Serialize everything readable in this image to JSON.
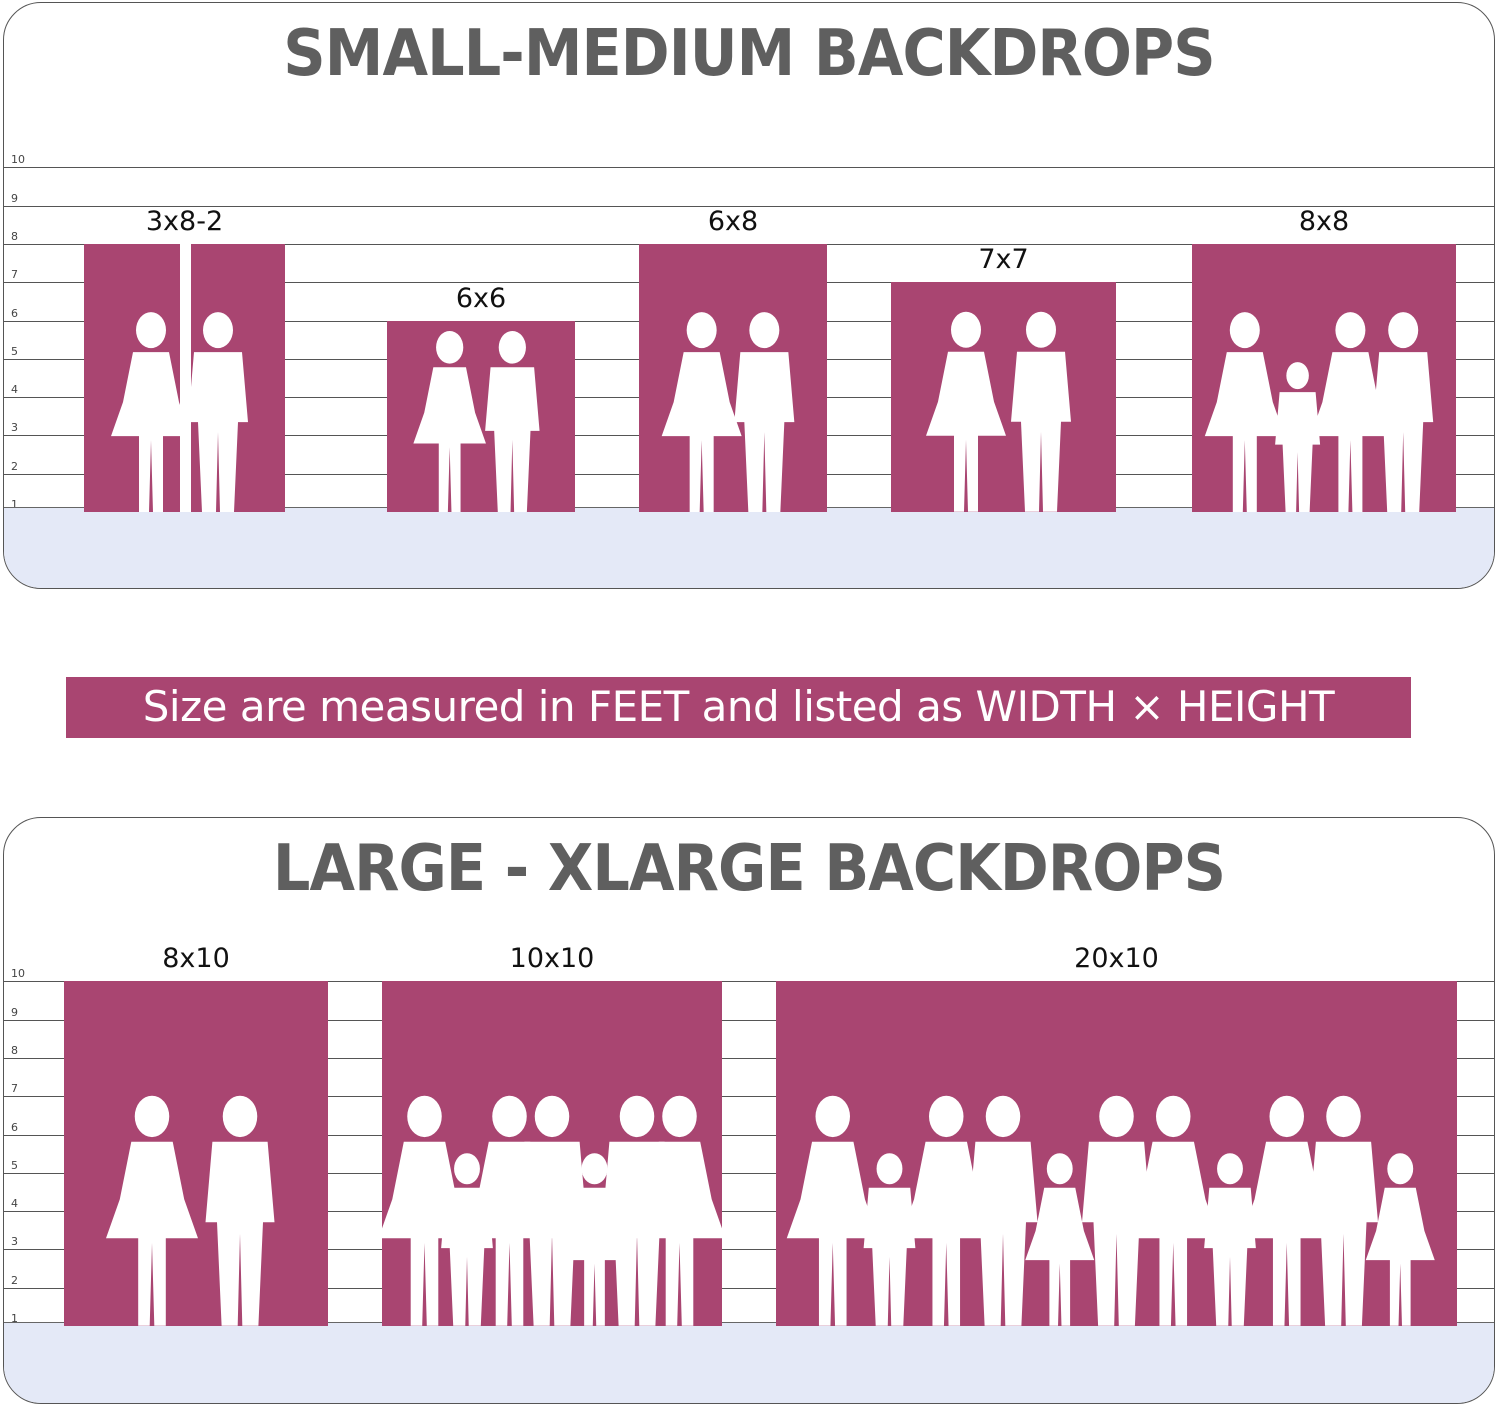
{
  "colors": {
    "backdrop": "#a94571",
    "title": "#5f5f5f",
    "floor": "#e4e9f7",
    "silhouette": "#ffffff"
  },
  "unit": "feet",
  "tick_labels": [
    "1",
    "2",
    "3",
    "4",
    "5",
    "6",
    "7",
    "8",
    "9",
    "10"
  ],
  "small_medium": {
    "title": "SMALL-MEDIUM BACKDROPS",
    "backdrops": [
      {
        "label": "3x8-2",
        "width_ft": 3,
        "height_ft": 8,
        "panels": 2
      },
      {
        "label": "6x6",
        "width_ft": 6,
        "height_ft": 6,
        "panels": 1
      },
      {
        "label": "6x8",
        "width_ft": 6,
        "height_ft": 8,
        "panels": 1
      },
      {
        "label": "7x7",
        "width_ft": 7,
        "height_ft": 7,
        "panels": 1
      },
      {
        "label": "8x8",
        "width_ft": 8,
        "height_ft": 8,
        "panels": 1
      }
    ]
  },
  "banner": "Size are measured in FEET and listed as WIDTH × HEIGHT",
  "large_xlarge": {
    "title": "LARGE - XLARGE BACKDROPS",
    "backdrops": [
      {
        "label": "8x10",
        "width_ft": 8,
        "height_ft": 10,
        "panels": 1
      },
      {
        "label": "10x10",
        "width_ft": 10,
        "height_ft": 10,
        "panels": 1
      },
      {
        "label": "20x10",
        "width_ft": 20,
        "height_ft": 10,
        "panels": 1
      }
    ]
  }
}
